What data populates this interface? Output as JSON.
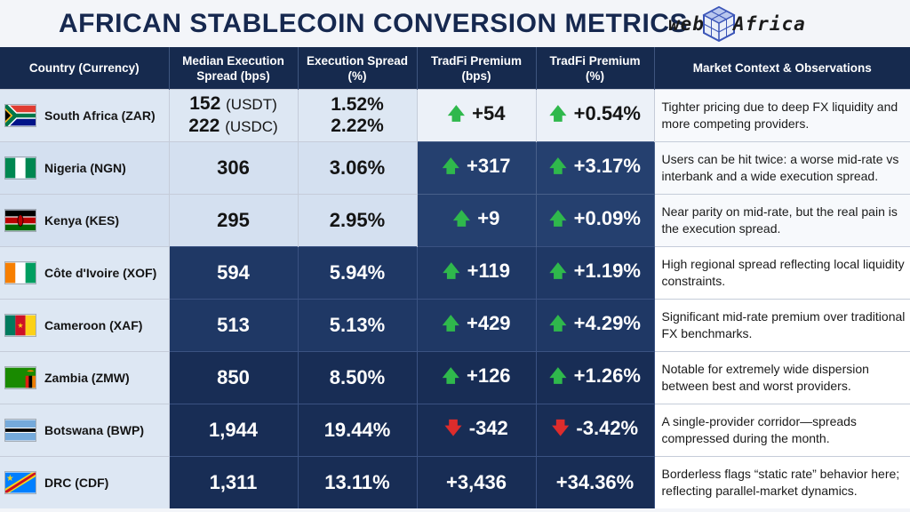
{
  "title": "AFRICAN STABLECOIN CONVERSION METRICS",
  "logo": {
    "left": "web",
    "right": "Africa",
    "mark_icon": "cube-logo-icon"
  },
  "colors": {
    "header_bg": "#162a4e",
    "up": "#2fb84c",
    "down": "#dd2c2c",
    "title": "#16284f"
  },
  "columns": [
    "Country (Currency)",
    "Median Execution Spread (bps)",
    "Execution Spread (%)",
    "TradFi Premium (bps)",
    "TradFi Premium (%)",
    "Market Context & Observations"
  ],
  "rows": [
    {
      "country": "South Africa (ZAR)",
      "flag": "south-africa-flag-icon",
      "spread_bps": "152",
      "spread_bps_note": "(USDT)",
      "spread_bps_2": "222",
      "spread_bps_2_note": "(USDC)",
      "spread_pct": "1.52%",
      "spread_pct_2": "2.22%",
      "prem_bps": "+54",
      "prem_pct": "+0.54%",
      "direction": "up",
      "context": "Tighter pricing due to deep FX liquidity and more competing providers."
    },
    {
      "country": "Nigeria (NGN)",
      "flag": "nigeria-flag-icon",
      "spread_bps": "306",
      "spread_pct": "3.06%",
      "prem_bps": "+317",
      "prem_pct": "+3.17%",
      "direction": "up",
      "context": "Users can be hit twice: a worse mid-rate vs interbank and a wide execution spread."
    },
    {
      "country": "Kenya (KES)",
      "flag": "kenya-flag-icon",
      "spread_bps": "295",
      "spread_pct": "2.95%",
      "prem_bps": "+9",
      "prem_pct": "+0.09%",
      "direction": "up",
      "context": "Near parity on mid-rate, but the real pain is the execution spread."
    },
    {
      "country": "Côte d'Ivoire (XOF)",
      "flag": "cote-divoire-flag-icon",
      "spread_bps": "594",
      "spread_pct": "5.94%",
      "prem_bps": "+119",
      "prem_pct": "+1.19%",
      "direction": "up",
      "context": "High regional spread reflecting local liquidity constraints."
    },
    {
      "country": "Cameroon (XAF)",
      "flag": "cameroon-flag-icon",
      "spread_bps": "513",
      "spread_pct": "5.13%",
      "prem_bps": "+429",
      "prem_pct": "+4.29%",
      "direction": "up",
      "context": "Significant mid-rate premium over traditional FX benchmarks."
    },
    {
      "country": "Zambia (ZMW)",
      "flag": "zambia-flag-icon",
      "spread_bps": "850",
      "spread_pct": "8.50%",
      "prem_bps": "+126",
      "prem_pct": "+1.26%",
      "direction": "up",
      "context": "Notable for extremely wide dispersion between best and worst providers."
    },
    {
      "country": "Botswana (BWP)",
      "flag": "botswana-flag-icon",
      "spread_bps": "1,944",
      "spread_pct": "19.44%",
      "prem_bps": "-342",
      "prem_pct": "-3.42%",
      "direction": "down",
      "context": "A single-provider corridor—spreads compressed during the month."
    },
    {
      "country": "DRC (CDF)",
      "flag": "drc-flag-icon",
      "spread_bps": "1,311",
      "spread_pct": "13.11%",
      "prem_bps": "+3,436",
      "prem_pct": "+34.36%",
      "direction": "none",
      "context": "Borderless flags “static rate” behavior here; reflecting parallel-market dynamics."
    }
  ]
}
